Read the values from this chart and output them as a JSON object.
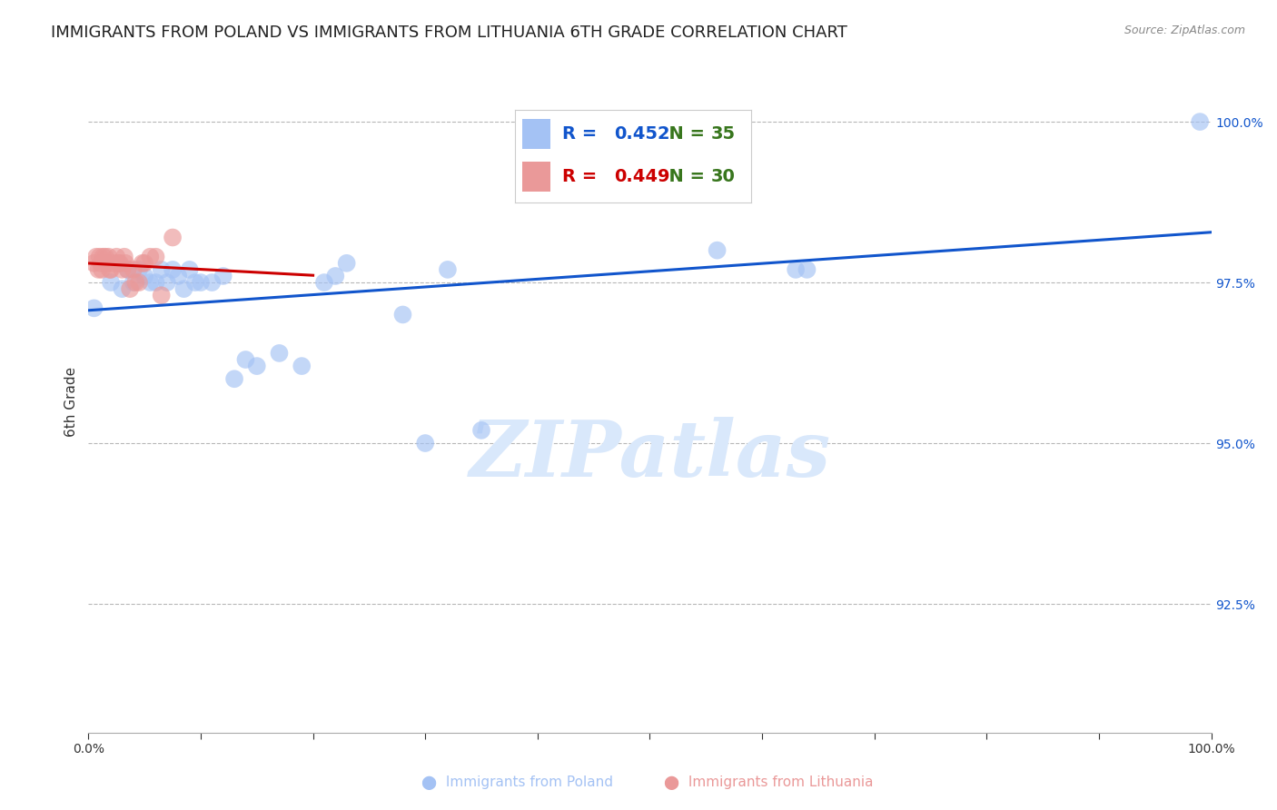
{
  "title": "IMMIGRANTS FROM POLAND VS IMMIGRANTS FROM LITHUANIA 6TH GRADE CORRELATION CHART",
  "source": "Source: ZipAtlas.com",
  "ylabel": "6th Grade",
  "xlim": [
    0.0,
    1.0
  ],
  "ylim": [
    0.905,
    1.008
  ],
  "yticks": [
    0.925,
    0.95,
    0.975,
    1.0
  ],
  "ytick_labels": [
    "92.5%",
    "95.0%",
    "97.5%",
    "100.0%"
  ],
  "xticks": [
    0.0,
    0.1,
    0.2,
    0.3,
    0.4,
    0.5,
    0.6,
    0.7,
    0.8,
    0.9,
    1.0
  ],
  "xtick_labels": [
    "0.0%",
    "",
    "",
    "",
    "",
    "",
    "",
    "",
    "",
    "",
    "100.0%"
  ],
  "poland_color": "#a4c2f4",
  "lithuania_color": "#ea9999",
  "trend_poland_color": "#1155cc",
  "trend_lithuania_color": "#cc0000",
  "R_poland": 0.452,
  "N_poland": 35,
  "R_lithuania": 0.449,
  "N_lithuania": 30,
  "legend_R_color": "#1155cc",
  "legend_N_color": "#38761d",
  "legend_R_lith_color": "#cc0000",
  "background_color": "#ffffff",
  "grid_color": "#b7b7b7",
  "title_fontsize": 13,
  "axis_label_fontsize": 11,
  "tick_label_fontsize": 10,
  "legend_fontsize": 14,
  "watermark_color": "#d9e8fb",
  "poland_x": [
    0.005,
    0.02,
    0.03,
    0.035,
    0.04,
    0.045,
    0.05,
    0.055,
    0.06,
    0.065,
    0.07,
    0.075,
    0.08,
    0.085,
    0.09,
    0.095,
    0.1,
    0.11,
    0.12,
    0.13,
    0.14,
    0.15,
    0.17,
    0.19,
    0.21,
    0.22,
    0.23,
    0.28,
    0.3,
    0.32,
    0.35,
    0.56,
    0.63,
    0.64,
    0.99
  ],
  "poland_y": [
    0.971,
    0.975,
    0.974,
    0.977,
    0.975,
    0.977,
    0.976,
    0.975,
    0.975,
    0.977,
    0.975,
    0.977,
    0.976,
    0.974,
    0.977,
    0.975,
    0.975,
    0.975,
    0.976,
    0.96,
    0.963,
    0.962,
    0.964,
    0.962,
    0.975,
    0.976,
    0.978,
    0.97,
    0.95,
    0.977,
    0.952,
    0.98,
    0.977,
    0.977,
    1.0
  ],
  "lithuania_x": [
    0.005,
    0.007,
    0.009,
    0.01,
    0.011,
    0.012,
    0.013,
    0.015,
    0.016,
    0.018,
    0.019,
    0.02,
    0.022,
    0.025,
    0.027,
    0.028,
    0.03,
    0.032,
    0.033,
    0.035,
    0.037,
    0.04,
    0.042,
    0.045,
    0.048,
    0.05,
    0.055,
    0.06,
    0.065,
    0.075
  ],
  "lithuania_y": [
    0.978,
    0.979,
    0.977,
    0.979,
    0.978,
    0.977,
    0.979,
    0.979,
    0.978,
    0.979,
    0.977,
    0.977,
    0.978,
    0.979,
    0.978,
    0.978,
    0.977,
    0.979,
    0.978,
    0.977,
    0.974,
    0.977,
    0.975,
    0.975,
    0.978,
    0.978,
    0.979,
    0.979,
    0.973,
    0.982
  ],
  "lith_trend_xmin": 0.0,
  "lith_trend_xmax": 0.2,
  "poland_trend_xmin": 0.0,
  "poland_trend_xmax": 1.0
}
